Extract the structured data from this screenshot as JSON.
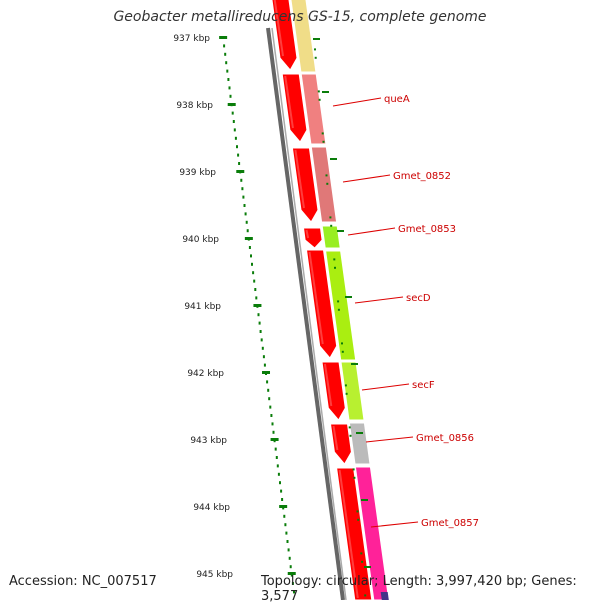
{
  "title": "Geobacter metallireducens GS-15, complete genome",
  "footer": {
    "accession": "Accession: NC_007517",
    "summary": "Topology: circular; Length: 3,997,420 bp; Genes: 3,577"
  },
  "colors": {
    "scale_dots": "#0a7d0a",
    "backbone": "#777777",
    "forward_strand": "#ff0000",
    "label_text": "#cc0000",
    "leader_line": "#dd0000"
  },
  "ticks": [
    {
      "label": "937 kbp"
    },
    {
      "label": "938 kbp"
    },
    {
      "label": "939 kbp"
    },
    {
      "label": "940 kbp"
    },
    {
      "label": "941 kbp"
    },
    {
      "label": "942 kbp"
    },
    {
      "label": "943 kbp"
    },
    {
      "label": "944 kbp"
    },
    {
      "label": "945 kbp"
    }
  ],
  "genes": [
    {
      "name": "queA",
      "color": "#f08080"
    },
    {
      "name": "Gmet_0852",
      "color": "#e07878"
    },
    {
      "name": "Gmet_0853",
      "color": "#99ee22"
    },
    {
      "name": "secD",
      "color": "#aaee11"
    },
    {
      "name": "secF",
      "color": "#b8f030"
    },
    {
      "name": "Gmet_0856",
      "color": "#bbbbbb"
    },
    {
      "name": "Gmet_0857",
      "color": "#ff2299"
    }
  ]
}
